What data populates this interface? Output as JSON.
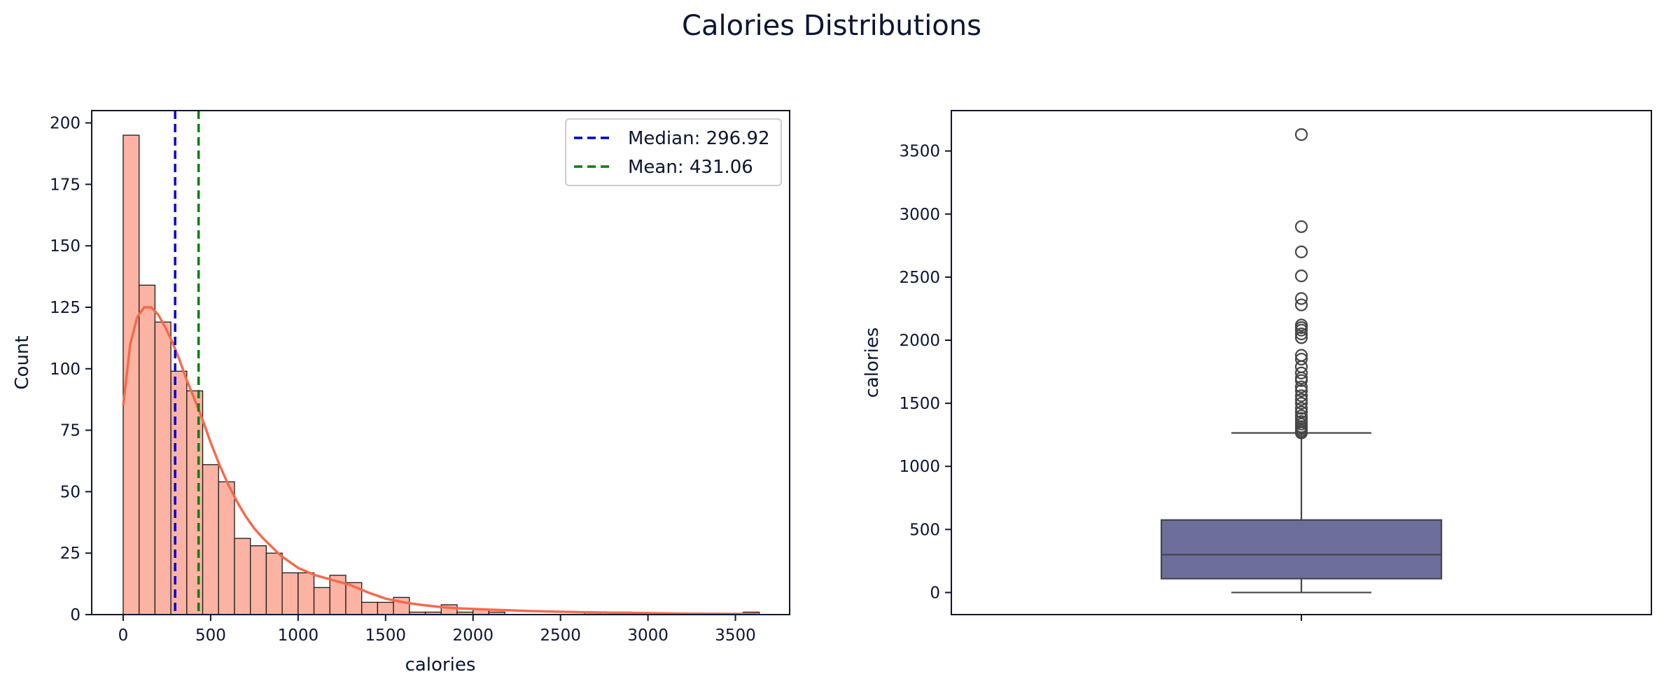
{
  "figure": {
    "title": "Calories Distributions"
  },
  "chart_data": [
    {
      "type": "bar",
      "subtype": "histogram-with-kde",
      "xlabel": "calories",
      "ylabel": "Count",
      "xlim": [
        -180,
        3810
      ],
      "ylim": [
        0,
        205
      ],
      "x_ticks": [
        0,
        500,
        1000,
        1500,
        2000,
        2500,
        3000,
        3500
      ],
      "y_ticks": [
        0,
        25,
        50,
        75,
        100,
        125,
        150,
        175,
        200
      ],
      "bin_start": 0,
      "bin_width": 90.9,
      "counts": [
        195,
        134,
        119,
        99,
        91,
        61,
        54,
        31,
        28,
        25,
        17,
        17,
        11,
        16,
        13,
        5,
        5,
        7,
        1,
        1,
        4,
        1,
        2,
        1,
        0,
        0,
        0,
        0,
        0,
        1,
        0,
        1,
        0,
        0,
        0,
        0,
        0,
        0,
        0,
        1
      ],
      "kde_curve": {
        "x": [
          0,
          40,
          80,
          120,
          160,
          200,
          240,
          280,
          320,
          360,
          400,
          450,
          500,
          550,
          600,
          650,
          700,
          750,
          800,
          900,
          1000,
          1100,
          1200,
          1300,
          1400,
          1500,
          1600,
          1700,
          1800,
          1900,
          2000,
          2100,
          2200,
          2300,
          2400,
          2600,
          2800,
          3000,
          3200,
          3400,
          3630
        ],
        "y": [
          85,
          110,
          121,
          125,
          125,
          122,
          117,
          111,
          104,
          96,
          89,
          80,
          70,
          61,
          53,
          46,
          40,
          35,
          31,
          24,
          19,
          16,
          14,
          12,
          9,
          6.5,
          5,
          4,
          3.2,
          2.6,
          2.3,
          2,
          1.8,
          1.5,
          1.3,
          1,
          0.8,
          0.6,
          0.4,
          0.3,
          0.2
        ]
      },
      "reference_lines": [
        {
          "label": "Median: 296.92",
          "x": 296.92,
          "color": "#0000cc",
          "style": "dashed"
        },
        {
          "label": "Mean: 431.06",
          "x": 431.06,
          "color": "#008000",
          "style": "dashed"
        }
      ],
      "legend_position": "top-right",
      "colors": {
        "bars": "#fdb3a3",
        "bar_edge": "#1a1a1a",
        "kde": "#f46a4e"
      }
    },
    {
      "type": "box",
      "ylabel": "calories",
      "ylim": [
        -175,
        3820
      ],
      "y_ticks": [
        0,
        500,
        1000,
        1500,
        2000,
        2500,
        3000,
        3500
      ],
      "box": {
        "q1": 110,
        "median": 300,
        "q3": 575,
        "whisker_low": 0,
        "whisker_high": 1265
      },
      "outliers": [
        1265,
        1272,
        1285,
        1300,
        1315,
        1335,
        1355,
        1380,
        1400,
        1430,
        1460,
        1500,
        1530,
        1560,
        1600,
        1630,
        1680,
        1700,
        1740,
        1790,
        1850,
        1880,
        2020,
        2050,
        2080,
        2100,
        2120,
        2280,
        2330,
        2510,
        2700,
        2900,
        3630
      ],
      "colors": {
        "box": "#6d6e9c",
        "lines": "#464646"
      }
    }
  ]
}
